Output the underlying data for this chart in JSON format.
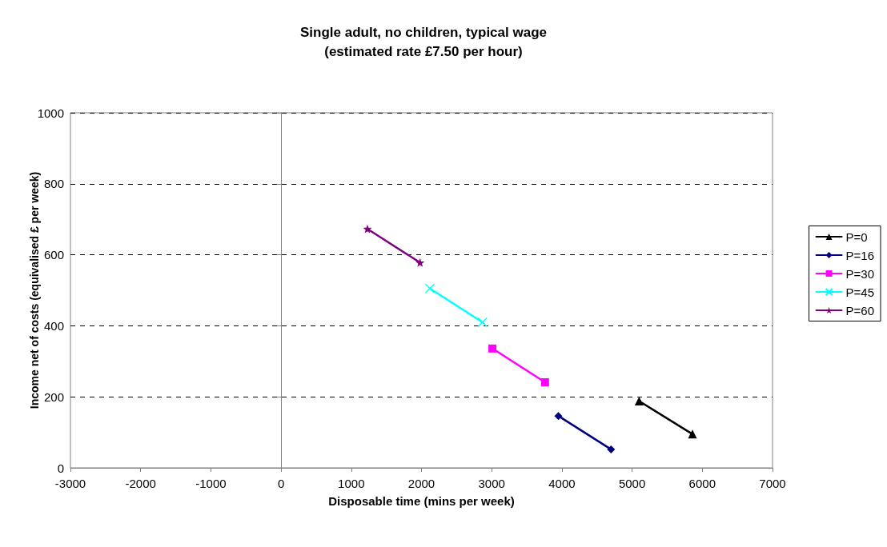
{
  "chart_data": {
    "type": "line",
    "title": "Single adult, no children, typical wage",
    "subtitle": "(estimated rate £7.50 per hour)",
    "xlabel": "Disposable time (mins per week)",
    "ylabel": "Income net of costs (equivalised £ per week)",
    "xlim": [
      -3000,
      7000
    ],
    "xticks": [
      -3000,
      -2000,
      -1000,
      0,
      1000,
      2000,
      3000,
      4000,
      5000,
      6000,
      7000
    ],
    "ylim": [
      0,
      1000
    ],
    "yticks": [
      0,
      200,
      400,
      600,
      800,
      1000
    ],
    "grid": "y",
    "legend": "right",
    "line_style": "solid",
    "series": [
      {
        "name": "P=0",
        "color": "#000000",
        "marker": "triangle",
        "x": [
          5100,
          5860
        ],
        "values": [
          188,
          95
        ]
      },
      {
        "name": "P=16",
        "color": "#000080",
        "marker": "diamond",
        "x": [
          3950,
          4700
        ],
        "values": [
          146,
          52
        ]
      },
      {
        "name": "P=30",
        "color": "#ff00ff",
        "marker": "square",
        "x": [
          3010,
          3760
        ],
        "values": [
          336,
          241
        ]
      },
      {
        "name": "P=45",
        "color": "#00ffff",
        "marker": "cross",
        "x": [
          2120,
          2870
        ],
        "values": [
          505,
          410
        ]
      },
      {
        "name": "P=60",
        "color": "#800080",
        "marker": "star",
        "x": [
          1230,
          1980
        ],
        "values": [
          673,
          578
        ]
      }
    ]
  }
}
